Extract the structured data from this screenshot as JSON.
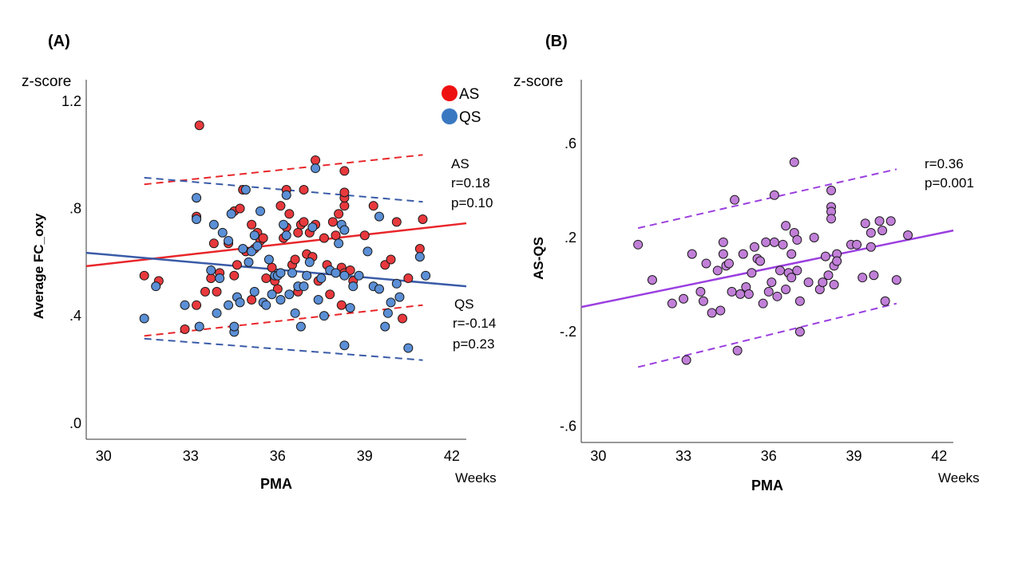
{
  "chart_data": [
    {
      "panel_label": "(A)",
      "type": "scatter",
      "xlabel": "PMA",
      "xunit": "Weeks",
      "ylabel": "Average FC_oxy",
      "ytitle": "z-score",
      "xlim": [
        29.4,
        42.5
      ],
      "ylim": [
        -0.06,
        1.28
      ],
      "xticks": [
        30,
        33,
        36,
        39,
        42
      ],
      "yticks": [
        0.0,
        0.4,
        0.8,
        1.2
      ],
      "ytick_labels": [
        ".0",
        ".4",
        ".8",
        "1.2"
      ],
      "legend_position": "top-right",
      "series": [
        {
          "name": "AS",
          "color": "#e8262a",
          "marker_color": "#e8393d",
          "points": [
            [
              31.4,
              0.55
            ],
            [
              31.9,
              0.53
            ],
            [
              32.8,
              0.35
            ],
            [
              33.2,
              0.44
            ],
            [
              33.2,
              0.77
            ],
            [
              33.3,
              1.11
            ],
            [
              33.5,
              0.49
            ],
            [
              33.7,
              0.54
            ],
            [
              33.8,
              0.67
            ],
            [
              33.9,
              0.49
            ],
            [
              34.0,
              0.56
            ],
            [
              34.3,
              0.67
            ],
            [
              34.5,
              0.55
            ],
            [
              34.5,
              0.79
            ],
            [
              34.6,
              0.59
            ],
            [
              34.7,
              0.8
            ],
            [
              34.8,
              0.87
            ],
            [
              34.9,
              0.64
            ],
            [
              35.1,
              0.46
            ],
            [
              35.1,
              0.74
            ],
            [
              35.2,
              0.65
            ],
            [
              35.3,
              0.71
            ],
            [
              35.4,
              0.68
            ],
            [
              35.5,
              0.69
            ],
            [
              35.6,
              0.54
            ],
            [
              35.8,
              0.58
            ],
            [
              35.9,
              0.53
            ],
            [
              36.0,
              0.5
            ],
            [
              36.1,
              0.81
            ],
            [
              36.2,
              0.69
            ],
            [
              36.3,
              0.73
            ],
            [
              36.3,
              0.87
            ],
            [
              36.4,
              0.78
            ],
            [
              36.5,
              0.59
            ],
            [
              36.6,
              0.61
            ],
            [
              36.7,
              0.49
            ],
            [
              36.7,
              0.71
            ],
            [
              36.8,
              0.74
            ],
            [
              36.9,
              0.75
            ],
            [
              36.9,
              0.87
            ],
            [
              37.0,
              0.63
            ],
            [
              37.1,
              0.71
            ],
            [
              37.2,
              0.62
            ],
            [
              37.3,
              0.74
            ],
            [
              37.3,
              0.98
            ],
            [
              37.4,
              0.53
            ],
            [
              37.6,
              0.69
            ],
            [
              37.7,
              0.59
            ],
            [
              37.8,
              0.48
            ],
            [
              37.9,
              0.75
            ],
            [
              38.0,
              0.7
            ],
            [
              38.1,
              0.78
            ],
            [
              38.2,
              0.44
            ],
            [
              38.2,
              0.58
            ],
            [
              38.3,
              0.56
            ],
            [
              38.3,
              0.81
            ],
            [
              38.3,
              0.84
            ],
            [
              38.3,
              0.86
            ],
            [
              38.3,
              0.94
            ],
            [
              38.5,
              0.57
            ],
            [
              38.6,
              0.53
            ],
            [
              39.0,
              0.7
            ],
            [
              39.3,
              0.81
            ],
            [
              39.7,
              0.59
            ],
            [
              39.9,
              0.61
            ],
            [
              40.1,
              0.75
            ],
            [
              40.3,
              0.39
            ],
            [
              40.5,
              0.54
            ],
            [
              40.9,
              0.65
            ],
            [
              41.0,
              0.76
            ]
          ]
        },
        {
          "name": "QS",
          "color": "#3a5ba8",
          "marker_color": "#5b8fd6",
          "points": [
            [
              31.4,
              0.39
            ],
            [
              31.8,
              0.51
            ],
            [
              32.8,
              0.44
            ],
            [
              33.2,
              0.76
            ],
            [
              33.2,
              0.84
            ],
            [
              33.3,
              0.36
            ],
            [
              33.7,
              0.57
            ],
            [
              33.8,
              0.74
            ],
            [
              33.9,
              0.41
            ],
            [
              34.0,
              0.54
            ],
            [
              34.1,
              0.71
            ],
            [
              34.3,
              0.44
            ],
            [
              34.3,
              0.68
            ],
            [
              34.4,
              0.78
            ],
            [
              34.5,
              0.34
            ],
            [
              34.5,
              0.36
            ],
            [
              34.6,
              0.47
            ],
            [
              34.7,
              0.45
            ],
            [
              34.8,
              0.65
            ],
            [
              34.9,
              0.87
            ],
            [
              35.0,
              0.6
            ],
            [
              35.1,
              0.64
            ],
            [
              35.2,
              0.7
            ],
            [
              35.2,
              0.49
            ],
            [
              35.3,
              0.66
            ],
            [
              35.4,
              0.79
            ],
            [
              35.5,
              0.45
            ],
            [
              35.6,
              0.44
            ],
            [
              35.7,
              0.61
            ],
            [
              35.8,
              0.48
            ],
            [
              35.9,
              0.55
            ],
            [
              36.0,
              0.55
            ],
            [
              36.1,
              0.46
            ],
            [
              36.1,
              0.56
            ],
            [
              36.2,
              0.74
            ],
            [
              36.3,
              0.7
            ],
            [
              36.3,
              0.85
            ],
            [
              36.4,
              0.48
            ],
            [
              36.5,
              0.56
            ],
            [
              36.6,
              0.41
            ],
            [
              36.7,
              0.51
            ],
            [
              36.8,
              0.36
            ],
            [
              36.9,
              0.51
            ],
            [
              37.0,
              0.55
            ],
            [
              37.1,
              0.6
            ],
            [
              37.2,
              0.73
            ],
            [
              37.3,
              0.95
            ],
            [
              37.4,
              0.46
            ],
            [
              37.5,
              0.54
            ],
            [
              37.6,
              0.4
            ],
            [
              37.8,
              0.57
            ],
            [
              38.0,
              0.56
            ],
            [
              38.1,
              0.67
            ],
            [
              38.2,
              0.74
            ],
            [
              38.3,
              0.29
            ],
            [
              38.3,
              0.55
            ],
            [
              38.3,
              0.72
            ],
            [
              38.5,
              0.43
            ],
            [
              38.6,
              0.51
            ],
            [
              38.8,
              0.55
            ],
            [
              39.1,
              0.64
            ],
            [
              39.3,
              0.51
            ],
            [
              39.5,
              0.77
            ],
            [
              39.5,
              0.5
            ],
            [
              39.7,
              0.36
            ],
            [
              39.8,
              0.41
            ],
            [
              39.9,
              0.45
            ],
            [
              40.1,
              0.52
            ],
            [
              40.2,
              0.47
            ],
            [
              40.5,
              0.28
            ],
            [
              40.9,
              0.62
            ],
            [
              41.1,
              0.55
            ]
          ]
        }
      ],
      "fits": [
        {
          "series": "AS",
          "x": [
            29.4,
            42.5
          ],
          "y": [
            0.585,
            0.745
          ],
          "style": "solid"
        },
        {
          "series": "AS",
          "x": [
            31.4,
            41.0
          ],
          "y": [
            0.89,
            1.0
          ],
          "style": "dashed"
        },
        {
          "series": "AS",
          "x": [
            31.4,
            41.0
          ],
          "y": [
            0.325,
            0.44
          ],
          "style": "dashed"
        },
        {
          "series": "QS",
          "x": [
            29.4,
            42.5
          ],
          "y": [
            0.635,
            0.51
          ],
          "style": "solid"
        },
        {
          "series": "QS",
          "x": [
            31.4,
            41.0
          ],
          "y": [
            0.915,
            0.825
          ],
          "style": "dashed"
        },
        {
          "series": "QS",
          "x": [
            31.4,
            41.0
          ],
          "y": [
            0.315,
            0.235
          ],
          "style": "dashed"
        }
      ],
      "annotations": [
        {
          "lines": [
            "AS",
            "r=0.18",
            "p=0.10"
          ]
        },
        {
          "lines": [
            "QS",
            "r=-0.14",
            "p=0.23"
          ]
        }
      ]
    },
    {
      "panel_label": "(B)",
      "type": "scatter",
      "xlabel": "PMA",
      "xunit": "Weeks",
      "ylabel": "AS-QS",
      "ytitle": "z-score",
      "xlim": [
        29.4,
        42.5
      ],
      "ylim": [
        -0.67,
        0.87
      ],
      "xticks": [
        30,
        33,
        36,
        39,
        42
      ],
      "yticks": [
        -0.6,
        -0.2,
        0.2,
        0.6
      ],
      "ytick_labels": [
        "-.6",
        "-.2",
        ".2",
        ".6"
      ],
      "series": [
        {
          "name": "",
          "color": "#9b3fe0",
          "marker_color": "#c17fd8",
          "points": [
            [
              31.4,
              0.17
            ],
            [
              31.9,
              0.02
            ],
            [
              32.6,
              -0.08
            ],
            [
              33.0,
              -0.06
            ],
            [
              33.1,
              -0.32
            ],
            [
              33.3,
              0.13
            ],
            [
              33.6,
              -0.03
            ],
            [
              33.7,
              -0.07
            ],
            [
              33.8,
              0.09
            ],
            [
              34.0,
              -0.12
            ],
            [
              34.2,
              0.06
            ],
            [
              34.3,
              -0.11
            ],
            [
              34.4,
              0.13
            ],
            [
              34.5,
              0.08
            ],
            [
              34.6,
              0.09
            ],
            [
              34.4,
              0.18
            ],
            [
              34.7,
              -0.03
            ],
            [
              34.8,
              0.36
            ],
            [
              34.9,
              -0.28
            ],
            [
              35.0,
              -0.04
            ],
            [
              35.1,
              0.13
            ],
            [
              35.2,
              -0.01
            ],
            [
              35.4,
              0.05
            ],
            [
              35.3,
              -0.04
            ],
            [
              35.5,
              0.16
            ],
            [
              35.6,
              0.11
            ],
            [
              35.7,
              0.1
            ],
            [
              35.8,
              -0.08
            ],
            [
              35.9,
              0.18
            ],
            [
              36.0,
              -0.03
            ],
            [
              36.1,
              0.01
            ],
            [
              36.2,
              0.18
            ],
            [
              36.2,
              0.38
            ],
            [
              36.3,
              -0.05
            ],
            [
              36.4,
              0.06
            ],
            [
              36.5,
              0.17
            ],
            [
              36.6,
              -0.02
            ],
            [
              36.6,
              0.25
            ],
            [
              36.7,
              0.05
            ],
            [
              36.8,
              0.03
            ],
            [
              36.8,
              0.13
            ],
            [
              36.9,
              0.52
            ],
            [
              36.9,
              0.22
            ],
            [
              37.0,
              0.19
            ],
            [
              37.0,
              0.06
            ],
            [
              37.1,
              -0.07
            ],
            [
              37.1,
              -0.2
            ],
            [
              37.4,
              0.01
            ],
            [
              37.6,
              0.2
            ],
            [
              37.8,
              -0.02
            ],
            [
              37.9,
              0.01
            ],
            [
              38.0,
              0.12
            ],
            [
              38.1,
              0.04
            ],
            [
              38.2,
              0.33
            ],
            [
              38.2,
              0.31
            ],
            [
              38.2,
              0.28
            ],
            [
              38.2,
              0.4
            ],
            [
              38.3,
              0.08
            ],
            [
              38.3,
              0.0
            ],
            [
              38.4,
              0.13
            ],
            [
              38.4,
              0.1
            ],
            [
              38.9,
              0.17
            ],
            [
              39.1,
              0.17
            ],
            [
              39.3,
              0.03
            ],
            [
              39.4,
              0.26
            ],
            [
              39.6,
              0.22
            ],
            [
              39.6,
              0.16
            ],
            [
              39.7,
              0.04
            ],
            [
              39.9,
              0.27
            ],
            [
              40.0,
              0.23
            ],
            [
              40.1,
              -0.07
            ],
            [
              40.3,
              0.27
            ],
            [
              40.5,
              0.02
            ],
            [
              40.9,
              0.21
            ]
          ]
        }
      ],
      "fits": [
        {
          "series": "AS-QS",
          "x": [
            29.4,
            42.5
          ],
          "y": [
            -0.095,
            0.23
          ],
          "style": "solid"
        },
        {
          "series": "AS-QS",
          "x": [
            31.4,
            40.5
          ],
          "y": [
            0.24,
            0.49
          ],
          "style": "dashed"
        },
        {
          "series": "AS-QS",
          "x": [
            31.4,
            40.5
          ],
          "y": [
            -0.35,
            -0.08
          ],
          "style": "dashed"
        }
      ],
      "annotations": [
        {
          "lines": [
            "r=0.36",
            "p=0.001"
          ]
        }
      ]
    }
  ]
}
